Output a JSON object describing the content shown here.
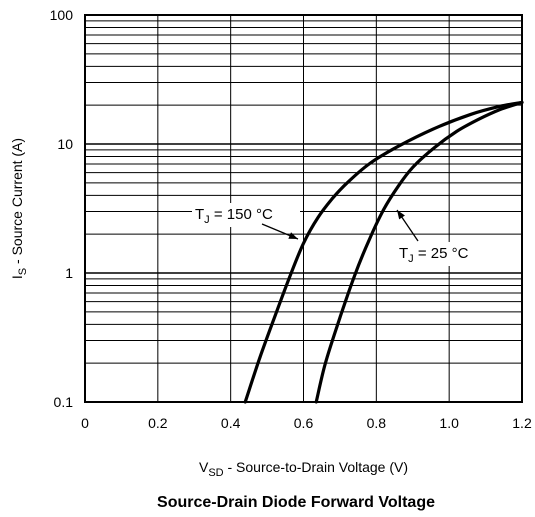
{
  "chart_data": {
    "type": "line",
    "title": "Source-Drain Diode Forward Voltage",
    "xlabel": {
      "main": "V",
      "sub": "SD",
      "rest": " - Source-to-Drain Voltage (V)"
    },
    "ylabel": {
      "main": "I",
      "sub": "S",
      "rest": " - Source Current (A)"
    },
    "xlim": [
      0,
      1.2
    ],
    "ylim": [
      0.1,
      100
    ],
    "yscale": "log",
    "grid": true,
    "x_ticks": [
      0,
      0.2,
      0.4,
      0.6,
      0.8,
      1.0,
      1.2
    ],
    "x_tick_labels": [
      "0",
      "0.2",
      "0.4",
      "0.6",
      "0.8",
      "1.0",
      "1.2"
    ],
    "y_ticks": [
      0.1,
      1,
      10,
      100
    ],
    "y_tick_labels": [
      "0.1",
      "1",
      "10",
      "100"
    ],
    "series": [
      {
        "name": "TJ = 150 °C",
        "label": {
          "main": "T",
          "sub": "J",
          "rest": " = 150 °C"
        },
        "x": [
          0.44,
          0.48,
          0.52,
          0.56,
          0.6,
          0.64,
          0.68,
          0.72,
          0.78,
          0.86,
          0.96,
          1.06,
          1.14,
          1.2
        ],
        "y": [
          0.1,
          0.22,
          0.45,
          0.9,
          1.7,
          2.7,
          3.8,
          5.0,
          7.0,
          9.6,
          13.2,
          17.0,
          19.6,
          21.0
        ]
      },
      {
        "name": "TJ = 25 °C",
        "label": {
          "main": "T",
          "sub": "J",
          "rest": " = 25 °C"
        },
        "x": [
          0.635,
          0.66,
          0.7,
          0.74,
          0.78,
          0.82,
          0.86,
          0.9,
          0.96,
          1.02,
          1.08,
          1.14,
          1.2
        ],
        "y": [
          0.1,
          0.2,
          0.45,
          0.95,
          1.8,
          3.1,
          4.7,
          6.6,
          9.4,
          12.5,
          15.5,
          18.5,
          21.0
        ]
      }
    ]
  }
}
